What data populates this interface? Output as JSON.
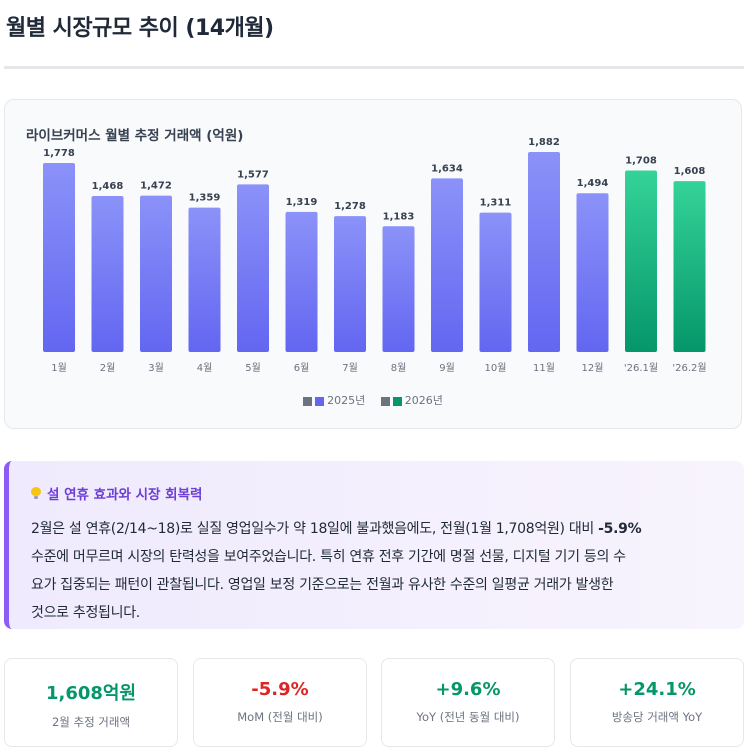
{
  "page": {
    "title": "월별 시장규모 추이 (14개월)"
  },
  "chart_data": {
    "type": "bar",
    "title": "라이브커머스 월별 추정 거래액 (억원)",
    "categories": [
      "1월",
      "2월",
      "3월",
      "4월",
      "5월",
      "6월",
      "7월",
      "8월",
      "9월",
      "10월",
      "11월",
      "12월",
      "'26.1월",
      "'26.2월"
    ],
    "values": [
      1778,
      1468,
      1472,
      1359,
      1577,
      1319,
      1278,
      1183,
      1634,
      1311,
      1882,
      1494,
      1708,
      1608
    ],
    "value_labels": [
      "1,778",
      "1,468",
      "1,472",
      "1,359",
      "1,577",
      "1,319",
      "1,278",
      "1,183",
      "1,634",
      "1,311",
      "1,882",
      "1,494",
      "1,708",
      "1,608"
    ],
    "series_groups": [
      "2025",
      "2025",
      "2025",
      "2025",
      "2025",
      "2025",
      "2025",
      "2025",
      "2025",
      "2025",
      "2025",
      "2025",
      "2026",
      "2026"
    ],
    "ylim": [
      0,
      1900
    ],
    "grid": false,
    "legend_placement": "bottom-center",
    "legend": [
      {
        "name": "2025년",
        "color": "#6366f1"
      },
      {
        "name": "2026년",
        "color": "#059669"
      }
    ],
    "colors": {
      "2025_top": "#8b92f8",
      "2025_bottom": "#6366f1",
      "2026_top": "#34d399",
      "2026_bottom": "#059669",
      "legend_gray": "#6b7280"
    }
  },
  "insight": {
    "heading": "설 연휴 효과와 시장 회복력",
    "icon": "lightbulb-icon",
    "line1_pre": "2월은 설 연휴(2/14~18)로 실질 영업일수가 약 18일에 불과했음에도, 전월(1월 1,708억원) 대비 ",
    "line1_bold": "-5.9%",
    "line2": "수준에 머무르며 시장의 탄력성을 보여주었습니다. 특히 연휴 전후 기간에 명절 선물, 디지털 기기 등의 수",
    "line3": "요가 집중되는 패턴이 관찰됩니다. 영업일 보정 기준으로는 전월과 유사한 수준의 일평균 거래가 발생한",
    "line4": "것으로 추정됩니다."
  },
  "kpis": [
    {
      "value": "1,608억원",
      "label": "2월 추정 거래액",
      "color": "#059669"
    },
    {
      "value": "-5.9%",
      "label": "MoM (전월 대비)",
      "color": "#dc2626"
    },
    {
      "value": "+9.6%",
      "label": "YoY (전년 동월 대비)",
      "color": "#059669"
    },
    {
      "value": "+24.1%",
      "label": "방송당 거래액 YoY",
      "color": "#059669"
    }
  ]
}
